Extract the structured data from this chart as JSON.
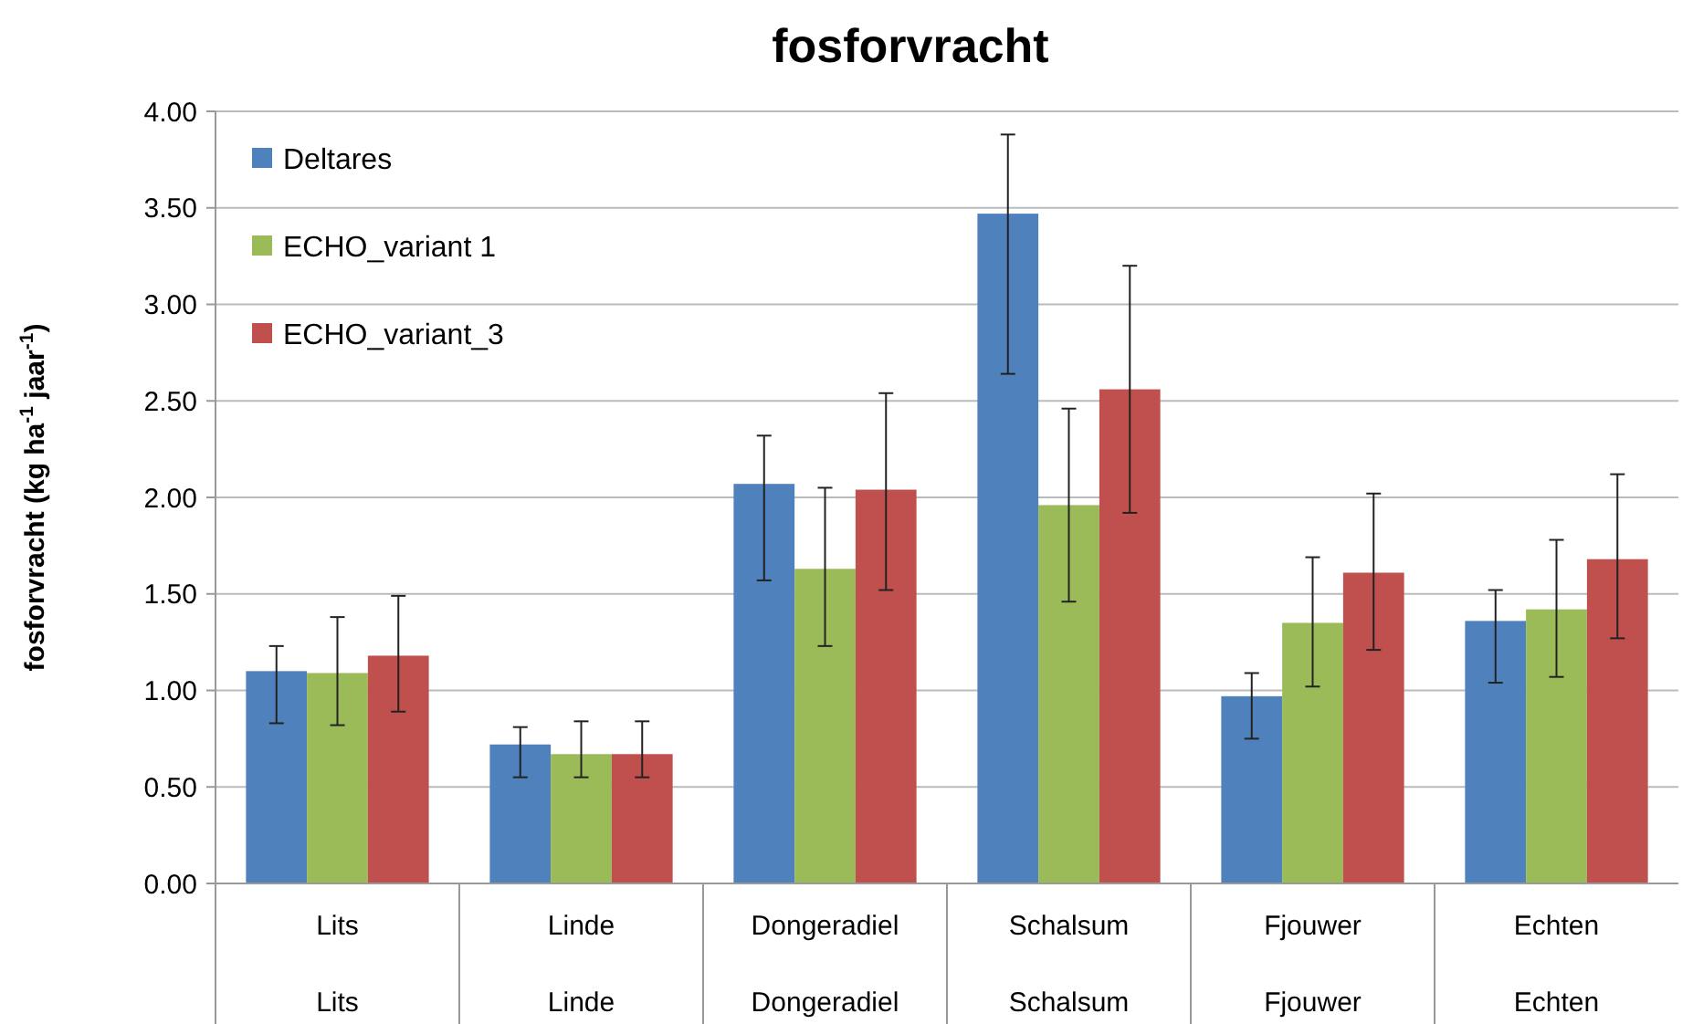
{
  "chart_data": {
    "type": "bar",
    "title": "fosforvracht",
    "ylabel": "fosforvracht (kg ha$^{-1}$ jaar$^{-1}$)",
    "categories": [
      "Lits",
      "Linde",
      "Dongeradiel",
      "Schalsum",
      "Fjouwer",
      "Echten"
    ],
    "annotations": [
      "Lits",
      "Linde",
      "Dongeradiel",
      "Schalsum",
      "Fjouwer",
      "Echten"
    ],
    "series": [
      {
        "name": "Deltares",
        "color": "#4f81bd",
        "values": [
          1.1,
          0.72,
          2.07,
          3.47,
          0.97,
          1.36
        ],
        "errors": [
          [
            0.83,
            1.23
          ],
          [
            0.55,
            0.81
          ],
          [
            1.57,
            2.32
          ],
          [
            2.64,
            3.88
          ],
          [
            0.75,
            1.09
          ],
          [
            1.04,
            1.52
          ]
        ]
      },
      {
        "name": "ECHO_variant 1",
        "color": "#9bbb59",
        "values": [
          1.09,
          0.67,
          1.63,
          1.96,
          1.35,
          1.42
        ],
        "errors": [
          [
            0.82,
            1.38
          ],
          [
            0.55,
            0.84
          ],
          [
            1.23,
            2.05
          ],
          [
            1.46,
            2.46
          ],
          [
            1.02,
            1.69
          ],
          [
            1.07,
            1.78
          ]
        ]
      },
      {
        "name": "ECHO_variant_3",
        "color": "#c0504d",
        "values": [
          1.18,
          0.67,
          2.04,
          2.56,
          1.61,
          1.68
        ],
        "errors": [
          [
            0.89,
            1.49
          ],
          [
            0.55,
            0.84
          ],
          [
            1.52,
            2.54
          ],
          [
            1.92,
            3.2
          ],
          [
            1.21,
            2.02
          ],
          [
            1.27,
            2.12
          ]
        ]
      }
    ],
    "ylim": [
      0,
      4
    ],
    "yticks": [
      {
        "value": 0,
        "label": "0.00"
      },
      {
        "value": 0.5,
        "label": "0.50"
      },
      {
        "value": 1,
        "label": "1.00"
      },
      {
        "value": 1.5,
        "label": "1.50"
      },
      {
        "value": 2,
        "label": "2.00"
      },
      {
        "value": 2.5,
        "label": "2.50"
      },
      {
        "value": 3,
        "label": "3.00"
      },
      {
        "value": 3.5,
        "label": "3.50"
      },
      {
        "value": 4,
        "label": "4.00"
      }
    ],
    "grid": "y",
    "legend": "top left"
  }
}
